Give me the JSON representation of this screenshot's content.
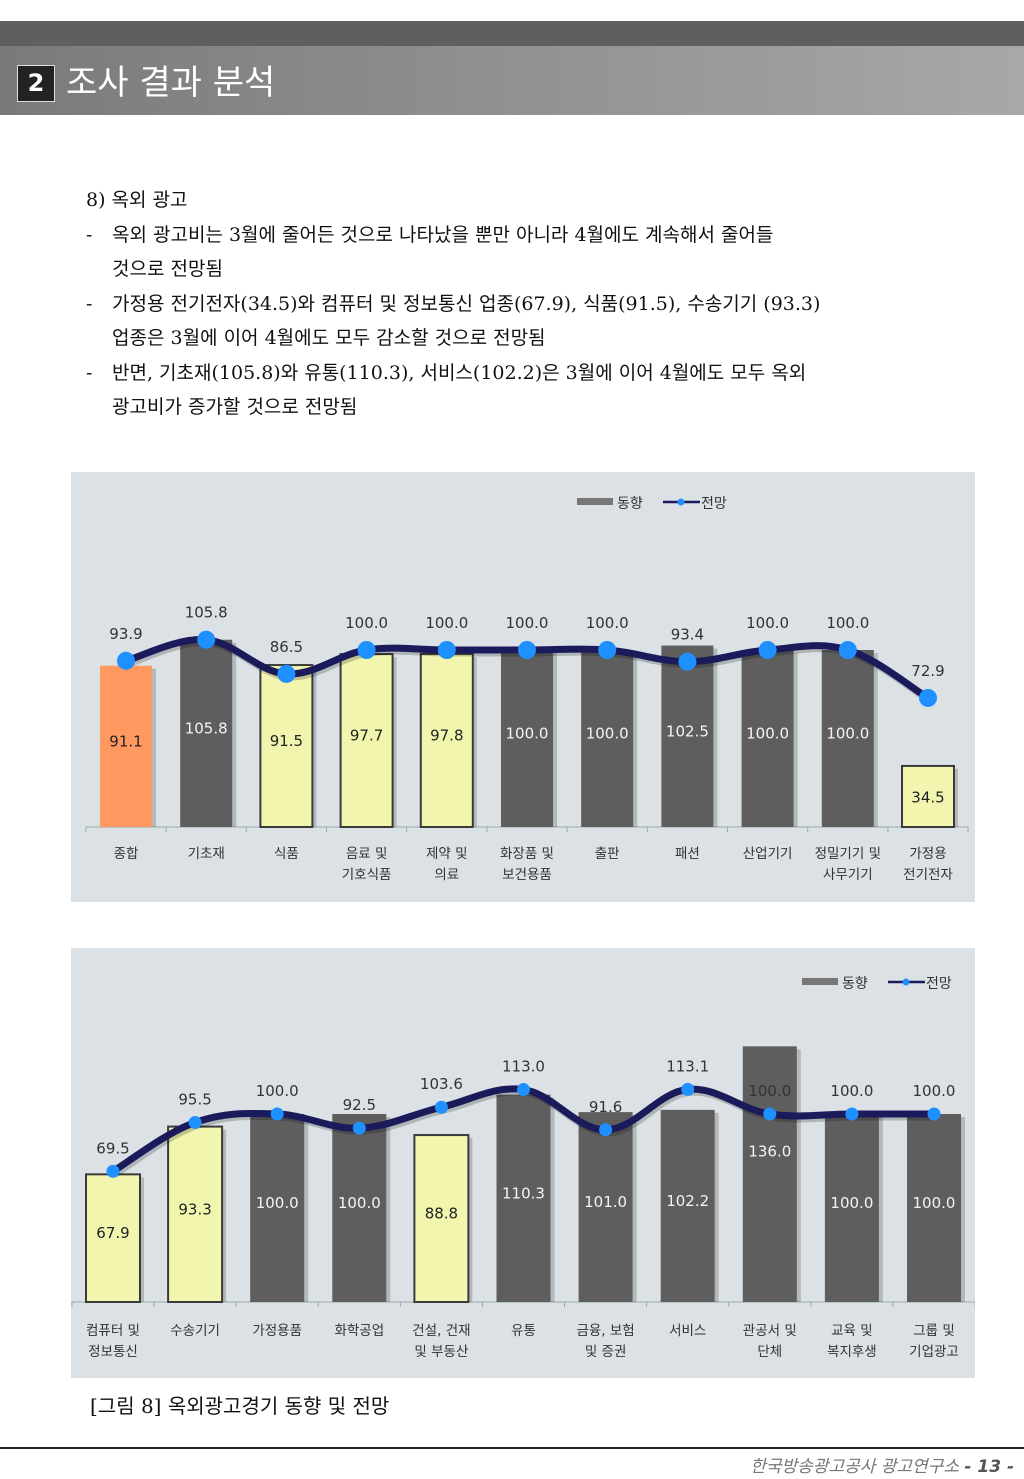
{
  "header": {
    "section_number": "2",
    "section_title": "조사 결과 분석"
  },
  "body": {
    "heading": "8) 옥외 광고",
    "bullets": [
      {
        "dash": "-",
        "lines": [
          "옥외 광고비는 3월에 줄어든 것으로 나타났을 뿐만 아니라 4월에도 계속해서 줄어들",
          "것으로 전망됨"
        ]
      },
      {
        "dash": "-",
        "lines": [
          "가정용 전기전자(34.5)와 컴퓨터 및 정보통신 업종(67.9), 식품(91.5), 수송기기 (93.3)",
          "업종은 3월에 이어 4월에도 모두 감소할 것으로 전망됨"
        ]
      },
      {
        "dash": "-",
        "lines": [
          "반면, 기초재(105.8)와 유통(110.3), 서비스(102.2)은 3월에 이어 4월에도 모두 옥외",
          "광고비가 증가할 것으로 전망됨"
        ]
      }
    ]
  },
  "chart_data": [
    {
      "type": "bar",
      "title": "",
      "legend": {
        "position": "top-right",
        "items": [
          {
            "name": "동향",
            "kind": "bar",
            "color": "#777777"
          },
          {
            "name": "전망",
            "kind": "line",
            "color": "#1a1a5e",
            "marker": "#1e90ff"
          }
        ]
      },
      "categories": [
        [
          "종합"
        ],
        [
          "기초재"
        ],
        [
          "식품"
        ],
        [
          "음료 및",
          "기호식품"
        ],
        [
          "제약 및",
          "의료"
        ],
        [
          "화장품 및",
          "보건용품"
        ],
        [
          "출판"
        ],
        [
          "패션"
        ],
        [
          "산업기기"
        ],
        [
          "정밀기기 및",
          "사무기기"
        ],
        [
          "가정용",
          "전기전자"
        ]
      ],
      "series": [
        {
          "name": "동향",
          "type": "bar",
          "values": [
            91.1,
            105.8,
            91.5,
            97.7,
            97.8,
            100.0,
            100.0,
            102.5,
            100.0,
            100.0,
            34.5
          ],
          "styles": [
            "orange",
            "dark",
            "yellow",
            "yellow",
            "yellow",
            "dark",
            "dark",
            "dark",
            "dark",
            "dark",
            "yellow"
          ]
        },
        {
          "name": "전망",
          "type": "line",
          "values": [
            93.9,
            105.8,
            86.5,
            100.0,
            100.0,
            100.0,
            100.0,
            93.4,
            100.0,
            100.0,
            72.9
          ]
        }
      ],
      "ylim": [
        0,
        140
      ],
      "grid": false,
      "colors": {
        "dark": "#5e5e5e",
        "yellow": "#f2f5ae",
        "orange": "#ff9960",
        "line": "#1b1b5c",
        "marker": "#1e90ff"
      }
    },
    {
      "type": "bar",
      "title": "",
      "legend": {
        "position": "top-right",
        "items": [
          {
            "name": "동향",
            "kind": "bar",
            "color": "#777777"
          },
          {
            "name": "전망",
            "kind": "line",
            "color": "#1a1a5e",
            "marker": "#1e90ff"
          }
        ]
      },
      "categories": [
        [
          "컴퓨터 및",
          "정보통신"
        ],
        [
          "수송기기"
        ],
        [
          "가정용품"
        ],
        [
          "화학공업"
        ],
        [
          "건설, 건재",
          "및 부동산"
        ],
        [
          "유통"
        ],
        [
          "금융, 보험",
          "및 증권"
        ],
        [
          "서비스"
        ],
        [
          "관공서 및",
          "단체"
        ],
        [
          "교육 및",
          "복지후생"
        ],
        [
          "그룹 및",
          "기업광고"
        ]
      ],
      "series": [
        {
          "name": "동향",
          "type": "bar",
          "values": [
            67.9,
            93.3,
            100.0,
            100.0,
            88.8,
            110.3,
            101.0,
            102.2,
            136.0,
            100.0,
            100.0
          ],
          "styles": [
            "yellow",
            "yellow",
            "dark",
            "dark",
            "yellow",
            "dark",
            "dark",
            "dark",
            "dark",
            "dark",
            "dark"
          ]
        },
        {
          "name": "전망",
          "type": "line",
          "values": [
            69.5,
            95.5,
            100.0,
            92.5,
            103.6,
            113.0,
            91.6,
            113.1,
            100.0,
            100.0,
            100.0
          ]
        }
      ],
      "ylim": [
        0,
        150
      ],
      "grid": false,
      "colors": {
        "dark": "#5e5e5e",
        "yellow": "#f2f5ae",
        "orange": "#ff9960",
        "line": "#1b1b5c",
        "marker": "#1e90ff"
      }
    }
  ],
  "caption": "[그림 8] 옥외광고경기 동향 및 전망",
  "footer": {
    "org": "한국방송광고공사 광고연구소",
    "page": "- 13 -"
  }
}
